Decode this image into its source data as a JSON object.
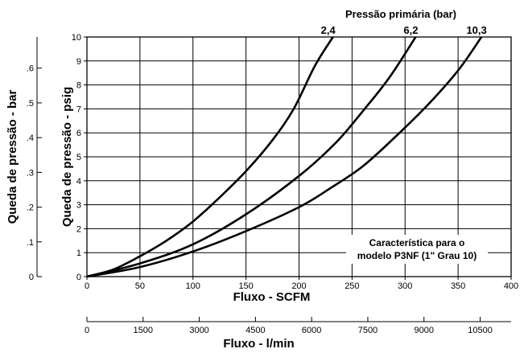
{
  "chart_data": {
    "type": "line",
    "legend_title": "Pressão primária (bar)",
    "series": [
      {
        "name": "2,4",
        "x": [
          0,
          25,
          50,
          75,
          100,
          125,
          150,
          175,
          195,
          215,
          232
        ],
        "y": [
          0,
          0.3,
          0.85,
          1.5,
          2.3,
          3.3,
          4.4,
          5.7,
          7.0,
          8.8,
          10
        ]
      },
      {
        "name": "6,2",
        "x": [
          0,
          50,
          100,
          150,
          200,
          235,
          260,
          285,
          310
        ],
        "y": [
          0,
          0.55,
          1.35,
          2.6,
          4.2,
          5.6,
          6.9,
          8.3,
          10
        ]
      },
      {
        "name": "10,3",
        "x": [
          0,
          50,
          100,
          150,
          200,
          230,
          260,
          290,
          320,
          350,
          372
        ],
        "y": [
          0,
          0.4,
          1.05,
          1.9,
          2.9,
          3.7,
          4.6,
          5.8,
          7.1,
          8.6,
          10
        ]
      }
    ],
    "xlabel": "Fluxo - SCFM",
    "ylabel": "Queda de pressão - psig",
    "xlim": [
      0,
      400
    ],
    "ylim": [
      0,
      10
    ],
    "x_ticks": [
      "0",
      "50",
      "100",
      "150",
      "200",
      "250",
      "300",
      "350",
      "400"
    ],
    "y_ticks": [
      "0",
      "1",
      "2",
      "3",
      "4",
      "5",
      "6",
      "7",
      "8",
      "9",
      "10"
    ],
    "secondary_y_axis": {
      "label": "Queda de pressão - bar",
      "ticks": [
        {
          "label": "0",
          "psig": 0
        },
        {
          "label": ".1",
          "psig": 1.45
        },
        {
          "label": ".2",
          "psig": 2.9
        },
        {
          "label": ".3",
          "psig": 4.35
        },
        {
          "label": ".4",
          "psig": 5.8
        },
        {
          "label": ".5",
          "psig": 7.25
        },
        {
          "label": ".6",
          "psig": 8.7
        }
      ]
    },
    "secondary_x_axis": {
      "label": "Fluxo - l/min",
      "ticks": [
        {
          "label": "0",
          "lmin": 0
        },
        {
          "label": "1500",
          "lmin": 1500
        },
        {
          "label": "3000",
          "lmin": 3000
        },
        {
          "label": "4500",
          "lmin": 4500
        },
        {
          "label": "6000",
          "lmin": 6000
        },
        {
          "label": "7500",
          "lmin": 7500
        },
        {
          "label": "9000",
          "lmin": 9000
        },
        {
          "label": "10500",
          "lmin": 10500
        }
      ]
    },
    "annotation": [
      "Característica para o",
      "modelo P3NF (1\" Grau 10)"
    ],
    "grid": true,
    "colors": {
      "line": "#000000",
      "grid": "#000000",
      "background": "#ffffff"
    }
  }
}
